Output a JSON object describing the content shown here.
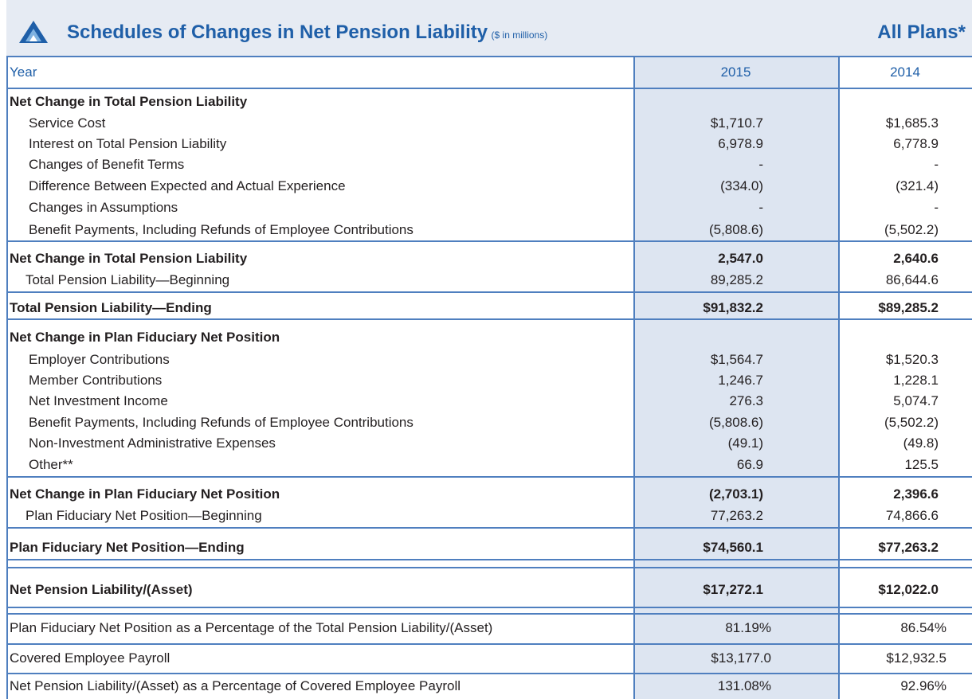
{
  "header": {
    "title": "Schedules of Changes in Net Pension Liability",
    "subtitle": "($ in millions)",
    "scope": "All Plans*"
  },
  "table": {
    "columns": [
      "Year",
      "2015",
      "2014"
    ],
    "rows": [
      [
        "Net Change in Total Pension Liability"
      ],
      [
        "Service Cost",
        "$1,710.7",
        "$1,685.3"
      ],
      [
        "Interest on Total Pension Liability",
        "6,978.9",
        "6,778.9"
      ],
      [
        "Changes of Benefit Terms",
        "-",
        "-"
      ],
      [
        "Difference Between Expected and Actual Experience",
        "(334.0)",
        "(321.4)"
      ],
      [
        "Changes in Assumptions",
        "-",
        "-"
      ],
      [
        "Benefit Payments, Including Refunds of Employee Contributions",
        "(5,808.6)",
        "(5,502.2)"
      ],
      [
        "Net Change in Total Pension Liability",
        "2,547.0",
        "2,640.6"
      ],
      [
        "Total Pension Liability—Beginning",
        "89,285.2",
        "86,644.6"
      ],
      [
        "Total Pension Liability—Ending",
        "$91,832.2",
        "$89,285.2"
      ],
      [
        "Net Change in Plan Fiduciary Net Position"
      ],
      [
        "Employer Contributions",
        "$1,564.7",
        "$1,520.3"
      ],
      [
        "Member Contributions",
        "1,246.7",
        "1,228.1"
      ],
      [
        "Net Investment Income",
        "276.3",
        "5,074.7"
      ],
      [
        "Benefit Payments, Including Refunds of Employee Contributions",
        "(5,808.6)",
        "(5,502.2)"
      ],
      [
        "Non-Investment Administrative Expenses",
        "(49.1)",
        "(49.8)"
      ],
      [
        "Other**",
        "66.9",
        "125.5"
      ],
      [
        "Net Change in Plan Fiduciary Net Position",
        "(2,703.1)",
        "2,396.6"
      ],
      [
        "Plan Fiduciary Net Position—Beginning",
        "77,263.2",
        "74,866.6"
      ],
      [
        "Plan Fiduciary Net Position—Ending",
        "$74,560.1",
        "$77,263.2"
      ],
      [
        "Net Pension Liability/(Asset)",
        "$17,272.1",
        "$12,022.0"
      ],
      [
        "Plan Fiduciary Net Position as a Percentage of the Total Pension Liability/(Asset)",
        "81.19%",
        "86.54%"
      ],
      [
        "Covered Employee Payroll",
        "$13,177.0",
        "$12,932.5"
      ],
      [
        "Net Pension Liability/(Asset) as a Percentage of Covered Employee Payroll",
        "131.08%",
        "92.96%"
      ]
    ]
  }
}
